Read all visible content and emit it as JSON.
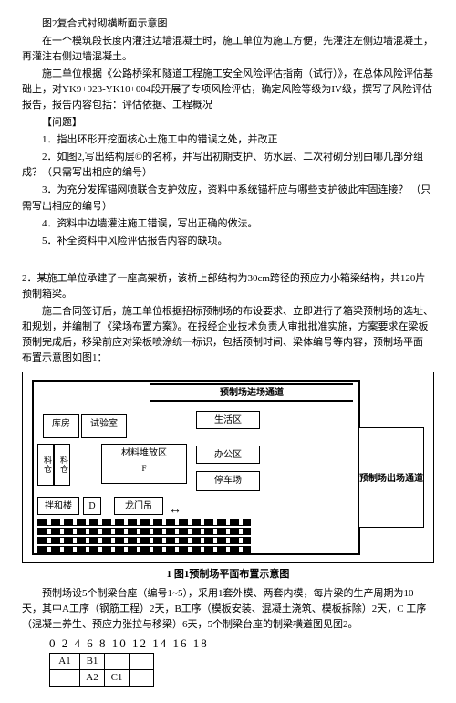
{
  "header": {
    "fig2_caption": "图2复合式衬砌横断面示意图",
    "p1": "在一个模筑段长度内灌注边墙混凝土时，施工单位为施工方便，先灌注左侧边墙混凝土，再灌注右侧边墙混凝土。",
    "p2": "施工单位根据《公路桥梁和隧道工程施工安全风险评估指南（试行）》，在总体风险评估基础上，对YK9+923-YK10+004段开展了专项风险评估，确定风险等级为IV级，撰写了风险评估 报告，报告内容包括：评估依据、工程概况",
    "wenti": "【问题】",
    "q1": "1．指出环形开挖面核心土施工中的错误之处，并改正",
    "q2": "2．如图2,写出结构层©的名称，并写出初期支护、防水层、二次衬砌分别由哪几部分组 成？（只需写出相应的编号）",
    "q3": "3．为充分发挥锚网喷联合支护效应，资料中系统锚杆应与哪些支护彼此牢固连接？ （只需写出相应的编号）",
    "q4": "4．资料中边墙灌注施工错误，写出正确的做法。",
    "q5": "5．补全资料中风险评估报告内容的缺项。"
  },
  "case2": {
    "intro": "2．某施工单位承建了一座高架桥，该桥上部结构为30cm跨径的预应力小箱梁结构，共120片 预制箱梁。",
    "p2": "施工合同签订后，施工单位根据招标预制场的布设要求、立即进行了箱梁预制场的选址、和规划，并编制了《梁场布置方案》。在报经企业技术负责人审批批准实施，方案要求在梁板 预制完成后，移梁前应对梁板喷涂统一标识，包括预制时间、梁体编号等内容，预制场平面 布置示意图如图1：",
    "fig": {
      "road_in": "预制场进场通道",
      "road_out": "预制场出场通道",
      "kufang": "库房",
      "shiyan": "试验室",
      "shenghuo": "生活区",
      "cailiao": "材料堆放区",
      "cailiao_sub": "F",
      "bangong": "办公区",
      "tingche": "停车场",
      "banhe": "拌和楼",
      "d": "D",
      "gantry": "龙门吊",
      "side1": "料仓",
      "side2": "料仓",
      "caption": "1 图1预制场平面布置示意图"
    },
    "p3": "预制场设5个制梁台座（编号1~5），采用1套外模、两套内模，每片梁的生产周期为10 天，其中A工序（钢筋工程）2天，B工序（模板安装、混凝土浇筑、模板拆除）2天，C 工序（混凝土养生、预应力张拉与移梁）6天，5个制梁台座的制梁横道图见图2。",
    "sched": {
      "nums": "0 2 4 6 8 10 12 14 16 18",
      "cells": {
        "r1c1": "A1",
        "r1c2": "B1",
        "r1c3": "",
        "r1c4": "",
        "r2c1": "",
        "r2c2": "A2",
        "r2c3": "C1",
        "r2c4": ""
      }
    }
  }
}
